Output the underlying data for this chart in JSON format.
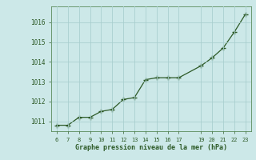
{
  "x": [
    6,
    7,
    8,
    9,
    10,
    11,
    12,
    13,
    14,
    15,
    16,
    17,
    19,
    20,
    21,
    22,
    23
  ],
  "y": [
    1010.8,
    1010.8,
    1011.2,
    1011.2,
    1011.5,
    1011.6,
    1012.1,
    1012.2,
    1013.1,
    1013.2,
    1013.2,
    1013.2,
    1013.8,
    1014.2,
    1014.7,
    1015.5,
    1016.4
  ],
  "ylim": [
    1010.5,
    1016.8
  ],
  "xlim": [
    5.5,
    23.5
  ],
  "yticks": [
    1011,
    1012,
    1013,
    1014,
    1015,
    1016
  ],
  "xticks": [
    6,
    7,
    8,
    9,
    10,
    11,
    12,
    13,
    14,
    15,
    16,
    17,
    19,
    20,
    21,
    22,
    23
  ],
  "xlabel": "Graphe pression niveau de la mer (hPa)",
  "line_color": "#2d5a27",
  "marker": "+",
  "bg_color": "#cce8e8",
  "grid_color": "#aacfcf",
  "tick_color": "#2d5a27",
  "label_color": "#2d5a27",
  "font_family": "monospace",
  "spine_color": "#5a8a5a"
}
